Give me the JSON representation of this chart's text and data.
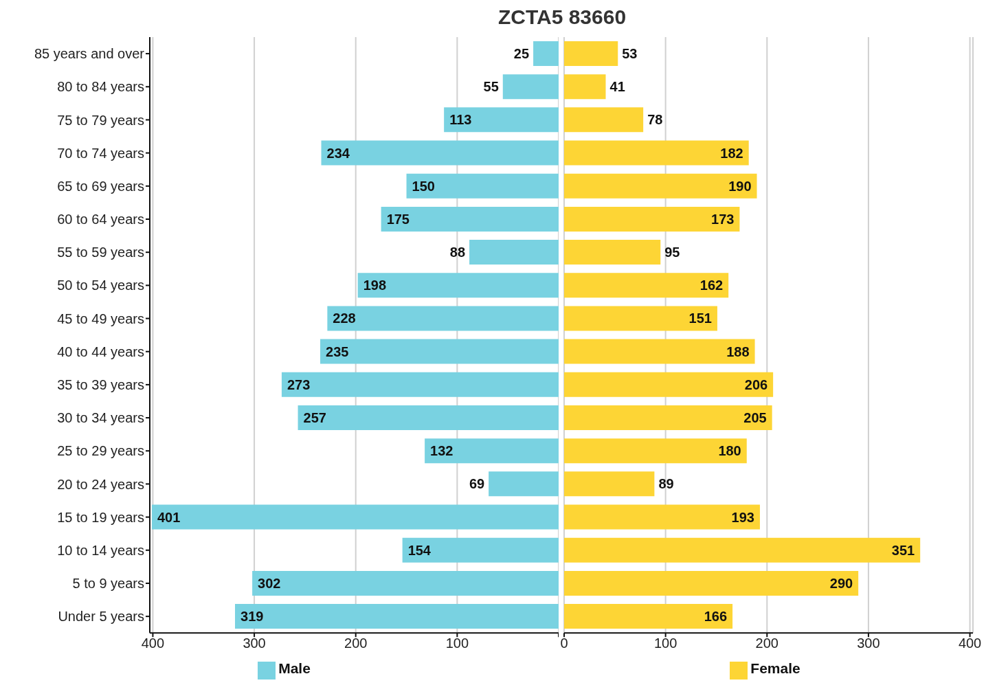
{
  "chart_data": [
    {
      "type": "bar",
      "orientation": "horizontal",
      "title": "ZCTA5 83660",
      "categories": [
        "85 years and over",
        "80 to 84 years",
        "75 to 79 years",
        "70 to 74 years",
        "65 to 69 years",
        "60 to 64 years",
        "55 to 59 years",
        "50 to 54 years",
        "45 to 49 years",
        "40 to 44 years",
        "35 to 39 years",
        "30 to 34 years",
        "25 to 29 years",
        "20 to 24 years",
        "15 to 19 years",
        "10 to 14 years",
        "5 to 9 years",
        "Under 5 years"
      ],
      "series": [
        {
          "name": "Male",
          "color": "#79d2e1",
          "values": [
            25,
            55,
            113,
            234,
            150,
            175,
            88,
            198,
            228,
            235,
            273,
            257,
            132,
            69,
            401,
            154,
            302,
            319
          ]
        }
      ],
      "data_labels": true,
      "xlim": [
        403,
        0
      ],
      "xticks": [
        400,
        300,
        200,
        100,
        {
          "value": 0,
          "label": null
        }
      ],
      "grid": "x",
      "legend": "bottom"
    },
    {
      "type": "bar",
      "orientation": "horizontal",
      "series": [
        {
          "name": "Female",
          "color": "#fdd535",
          "values": [
            53,
            41,
            78,
            182,
            190,
            173,
            95,
            162,
            151,
            188,
            206,
            205,
            180,
            89,
            193,
            351,
            290,
            166
          ]
        }
      ],
      "data_labels": true,
      "xlim": [
        0,
        403
      ],
      "xticks": [
        0,
        100,
        200,
        300,
        400
      ],
      "grid": "x",
      "legend": "bottom",
      "tick_labels": "x"
    }
  ]
}
